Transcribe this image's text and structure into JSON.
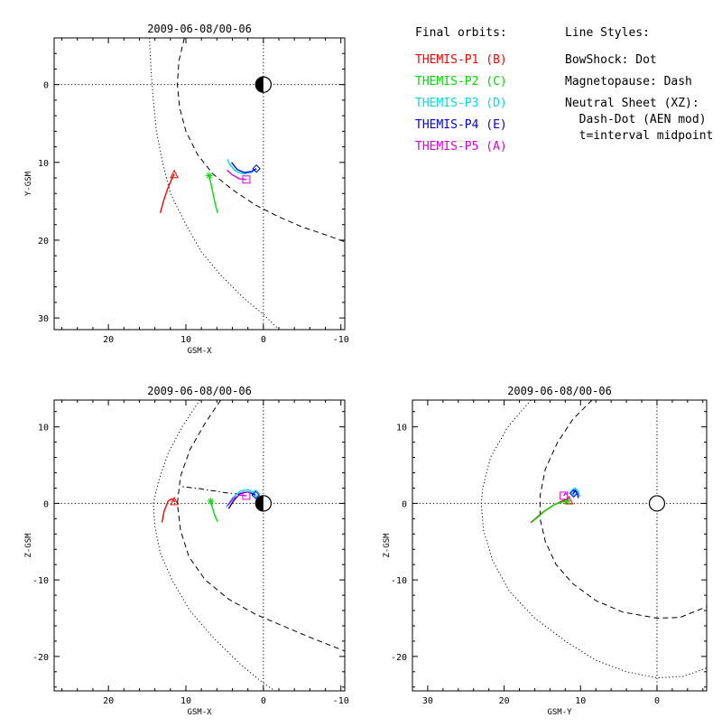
{
  "colors": {
    "P1": "#ff0000",
    "P2": "#00dd00",
    "P3": "#00dddd",
    "P4": "#0000ee",
    "P5": "#dd00dd",
    "axes": "#000000",
    "background": "#ffffff"
  },
  "legend": {
    "orbits_title": "Final orbits:",
    "probes": [
      {
        "key": "P1",
        "label": "THEMIS-P1 (B)"
      },
      {
        "key": "P2",
        "label": "THEMIS-P2 (C)"
      },
      {
        "key": "P3",
        "label": "THEMIS-P3 (D)"
      },
      {
        "key": "P4",
        "label": "THEMIS-P4 (E)"
      },
      {
        "key": "P5",
        "label": "THEMIS-P5 (A)"
      }
    ],
    "styles_title": "Line Styles:",
    "style_lines": [
      "BowShock: Dot",
      "Magnetopause: Dash",
      "Neutral Sheet (XZ):",
      "  Dash-Dot (AEN mod)",
      "  t=interval midpoint"
    ]
  },
  "chart_data": [
    {
      "type": "line",
      "panel": "xy",
      "title": "2009-06-08/00-06",
      "xlabel": "GSM-X",
      "ylabel": "Y-GSM",
      "xlim": [
        27,
        -10.5
      ],
      "ylim": [
        -6,
        31.5
      ],
      "y_reversed": true,
      "x_ticks": [
        20,
        10,
        0,
        -10
      ],
      "y_ticks": [
        0,
        10,
        20,
        30
      ],
      "grid": false,
      "reference_lines": {
        "x": 0,
        "y": 0,
        "style": "dotted"
      },
      "earth": {
        "x": 0,
        "y": 0,
        "r": 1,
        "half_shaded": true
      },
      "boundaries": [
        {
          "name": "bowshock",
          "style": "dotted",
          "points": [
            [
              14.7,
              -6
            ],
            [
              14.5,
              -2
            ],
            [
              14.2,
              2
            ],
            [
              13.8,
              6
            ],
            [
              13,
              10
            ],
            [
              12,
              14
            ],
            [
              10,
              18
            ],
            [
              8,
              21.5
            ],
            [
              5.5,
              24.5
            ],
            [
              2.5,
              27.5
            ],
            [
              0,
              29.5
            ],
            [
              -2,
              31.5
            ]
          ]
        },
        {
          "name": "magnetopause",
          "style": "dashed",
          "points": [
            [
              10.2,
              -6
            ],
            [
              10.9,
              -3
            ],
            [
              11.1,
              0
            ],
            [
              10.8,
              3
            ],
            [
              10,
              6
            ],
            [
              8.5,
              9
            ],
            [
              6.5,
              11.5
            ],
            [
              4,
              13.5
            ],
            [
              1,
              15.5
            ],
            [
              -2,
              17
            ],
            [
              -5,
              18.3
            ],
            [
              -8,
              19.3
            ],
            [
              -10.5,
              20.2
            ]
          ]
        }
      ],
      "series": [
        {
          "name": "THEMIS-P1 (B)",
          "key": "P1",
          "marker": "triangle",
          "points": [
            [
              13.3,
              16.5
            ],
            [
              12.9,
              15
            ],
            [
              12.4,
              13.5
            ],
            [
              11.9,
              12.3
            ],
            [
              11.5,
              11.5
            ]
          ],
          "marker_at": [
            11.5,
            11.5
          ]
        },
        {
          "name": "THEMIS-P2 (C)",
          "key": "P2",
          "marker": "asterisk",
          "points": [
            [
              7,
              11.7
            ],
            [
              6.7,
              13
            ],
            [
              6.4,
              14.5
            ],
            [
              6.1,
              15.8
            ],
            [
              5.9,
              16.5
            ]
          ],
          "marker_at": [
            7,
            11.7
          ]
        },
        {
          "name": "THEMIS-P3 (D)",
          "key": "P3",
          "marker": "diamond",
          "points": [
            [
              0.9,
              10.8
            ],
            [
              1.6,
              11.3
            ],
            [
              2.6,
              11.5
            ],
            [
              3.6,
              11.1
            ],
            [
              4.4,
              10.2
            ],
            [
              4.6,
              9.6
            ]
          ],
          "marker_at": [
            0.9,
            10.8
          ]
        },
        {
          "name": "THEMIS-P4 (E)",
          "key": "P4",
          "marker": "diamond",
          "points": [
            [
              0.9,
              10.8
            ],
            [
              1.6,
              11.2
            ],
            [
              2.5,
              11.3
            ],
            [
              3.4,
              10.9
            ],
            [
              4.1,
              10
            ]
          ],
          "marker_at": [
            0.9,
            10.8
          ]
        },
        {
          "name": "THEMIS-P5 (A)",
          "key": "P5",
          "marker": "square",
          "points": [
            [
              2.2,
              12.2
            ],
            [
              3.1,
              12.1
            ],
            [
              4,
              11.6
            ],
            [
              4.7,
              11
            ]
          ],
          "marker_at": [
            2.2,
            12.2
          ]
        }
      ]
    },
    {
      "type": "line",
      "panel": "xz",
      "title": "2009-06-08/00-06",
      "xlabel": "GSM-X",
      "ylabel": "Z-GSM",
      "xlim": [
        27,
        -10.5
      ],
      "ylim": [
        -24.5,
        13.5
      ],
      "y_reversed": false,
      "x_ticks": [
        20,
        10,
        0,
        -10
      ],
      "y_ticks": [
        10,
        0,
        -10,
        -20
      ],
      "grid": false,
      "reference_lines": {
        "x": 0,
        "y": 0,
        "style": "dotted"
      },
      "earth": {
        "x": 0,
        "y": 0,
        "r": 1,
        "half_shaded": true
      },
      "boundaries": [
        {
          "name": "bowshock",
          "style": "dotted",
          "points": [
            [
              8.2,
              13.5
            ],
            [
              10.5,
              10
            ],
            [
              12.3,
              6.5
            ],
            [
              13.5,
              3
            ],
            [
              14.2,
              0
            ],
            [
              14,
              -3
            ],
            [
              13.3,
              -6.5
            ],
            [
              11.8,
              -10
            ],
            [
              9.5,
              -14
            ],
            [
              6.5,
              -17.5
            ],
            [
              3,
              -21
            ],
            [
              0,
              -23.5
            ],
            [
              -1.5,
              -24.5
            ]
          ]
        },
        {
          "name": "magnetopause",
          "style": "dashed",
          "points": [
            [
              5.5,
              13.5
            ],
            [
              7.5,
              10.5
            ],
            [
              9.5,
              7
            ],
            [
              10.7,
              3.5
            ],
            [
              11.1,
              0
            ],
            [
              10.7,
              -3.5
            ],
            [
              9.6,
              -7
            ],
            [
              7.5,
              -10
            ],
            [
              4.5,
              -12.5
            ],
            [
              1,
              -14.5
            ],
            [
              -2.5,
              -16
            ],
            [
              -6,
              -17.5
            ],
            [
              -10.5,
              -19.3
            ]
          ]
        },
        {
          "name": "neutral_sheet",
          "style": "dashdot",
          "points": [
            [
              3,
              1.2
            ],
            [
              4,
              1.3
            ],
            [
              5,
              1.4
            ],
            [
              6,
              1.6
            ],
            [
              7,
              1.7
            ],
            [
              8,
              1.9
            ],
            [
              9,
              2
            ],
            [
              10.5,
              2.2
            ]
          ]
        }
      ],
      "series": [
        {
          "name": "THEMIS-P1 (B)",
          "key": "P1",
          "marker": "triangle",
          "points": [
            [
              13.1,
              -2.5
            ],
            [
              12.8,
              -1
            ],
            [
              12.3,
              0.3
            ],
            [
              11.8,
              0.6
            ],
            [
              11.4,
              0.2
            ]
          ],
          "marker_at": [
            11.5,
            0.3
          ]
        },
        {
          "name": "THEMIS-P2 (C)",
          "key": "P2",
          "marker": "asterisk",
          "points": [
            [
              6.8,
              0.3
            ],
            [
              6.5,
              -0.8
            ],
            [
              6.2,
              -1.8
            ],
            [
              5.9,
              -2.4
            ]
          ],
          "marker_at": [
            6.8,
            0.3
          ]
        },
        {
          "name": "THEMIS-P3 (D)",
          "key": "P3",
          "marker": "diamond",
          "points": [
            [
              1,
              1.3
            ],
            [
              2,
              1.8
            ],
            [
              3,
              1.6
            ],
            [
              4,
              0.7
            ],
            [
              4.8,
              -0.5
            ]
          ],
          "marker_at": [
            1,
            1.3
          ]
        },
        {
          "name": "THEMIS-P4 (E)",
          "key": "P4",
          "marker": "diamond",
          "points": [
            [
              1,
              1.1
            ],
            [
              2,
              1.5
            ],
            [
              3,
              1.3
            ],
            [
              3.8,
              0.4
            ],
            [
              4.5,
              -0.7
            ]
          ],
          "marker_at": [
            1,
            1.1
          ]
        },
        {
          "name": "THEMIS-P5 (A)",
          "key": "P5",
          "marker": "square",
          "points": [
            [
              2.2,
              1
            ],
            [
              3.1,
              1.1
            ],
            [
              3.9,
              0.6
            ],
            [
              4.6,
              -0.3
            ]
          ],
          "marker_at": [
            2.2,
            1
          ]
        }
      ]
    },
    {
      "type": "line",
      "panel": "yz",
      "title": "2009-06-08/00-06",
      "xlabel": "GSM-Y",
      "ylabel": "Z-GSM",
      "xlim": [
        32,
        -6.5
      ],
      "ylim": [
        -24.5,
        13.5
      ],
      "y_reversed": false,
      "x_ticks": [
        30,
        20,
        10,
        0
      ],
      "y_ticks": [
        10,
        0,
        -10,
        -20
      ],
      "grid": false,
      "reference_lines": {
        "x": 0,
        "y": 0,
        "style": "dotted"
      },
      "earth": {
        "x": 0,
        "y": 0,
        "r": 1,
        "half_shaded": false
      },
      "boundaries": [
        {
          "name": "bowshock",
          "style": "dotted",
          "points": [
            [
              16.5,
              13.5
            ],
            [
              19.5,
              10
            ],
            [
              21.8,
              6
            ],
            [
              22.8,
              2
            ],
            [
              23,
              0
            ],
            [
              22.7,
              -3.5
            ],
            [
              21.5,
              -7.5
            ],
            [
              19.3,
              -11.5
            ],
            [
              16,
              -15
            ],
            [
              12,
              -18
            ],
            [
              8,
              -20.5
            ],
            [
              4,
              -22
            ],
            [
              0,
              -22.8
            ],
            [
              -3.5,
              -22.6
            ],
            [
              -6.5,
              -21.5
            ]
          ]
        },
        {
          "name": "magnetopause",
          "style": "dashed",
          "points": [
            [
              8.5,
              13.5
            ],
            [
              11,
              11
            ],
            [
              13,
              8
            ],
            [
              14.6,
              4.5
            ],
            [
              15.3,
              1
            ],
            [
              15.3,
              -2
            ],
            [
              14.6,
              -5
            ],
            [
              13.2,
              -8
            ],
            [
              11,
              -10.5
            ],
            [
              8,
              -12.7
            ],
            [
              4.5,
              -14.2
            ],
            [
              0,
              -15
            ],
            [
              -3,
              -14.9
            ],
            [
              -6.5,
              -13.5
            ]
          ]
        }
      ],
      "series": [
        {
          "name": "THEMIS-P1 (B)",
          "key": "P1",
          "marker": "triangle",
          "points": [
            [
              16.5,
              -2.5
            ],
            [
              15,
              -1.2
            ],
            [
              13.5,
              -0.2
            ],
            [
              12.2,
              0.4
            ],
            [
              11.4,
              0.3
            ]
          ],
          "marker_at": [
            11.5,
            0.4
          ]
        },
        {
          "name": "THEMIS-P2 (C)",
          "key": "P2",
          "marker": "asterisk",
          "points": [
            [
              16.3,
              -2.4
            ],
            [
              14.8,
              -1.1
            ],
            [
              13.3,
              -0.1
            ],
            [
              12,
              0.3
            ],
            [
              11.8,
              0.2
            ]
          ],
          "marker_at": [
            11.8,
            0.3
          ]
        },
        {
          "name": "THEMIS-P3 (D)",
          "key": "P3",
          "marker": "diamond",
          "points": [
            [
              11,
              1.4
            ],
            [
              10.7,
              2
            ],
            [
              10.3,
              1.6
            ],
            [
              10.1,
              0.9
            ]
          ],
          "marker_at": [
            10.9,
            1.5
          ]
        },
        {
          "name": "THEMIS-P4 (E)",
          "key": "P4",
          "marker": "diamond",
          "points": [
            [
              11,
              1.2
            ],
            [
              10.7,
              1.7
            ],
            [
              10.4,
              1.3
            ],
            [
              10.3,
              0.7
            ]
          ],
          "marker_at": [
            10.9,
            1.3
          ]
        },
        {
          "name": "THEMIS-P5 (A)",
          "key": "P5",
          "marker": "square",
          "points": [
            [
              12.2,
              1
            ],
            [
              12,
              1.3
            ],
            [
              11.8,
              1.2
            ]
          ],
          "marker_at": [
            12.2,
            1
          ]
        }
      ]
    }
  ]
}
